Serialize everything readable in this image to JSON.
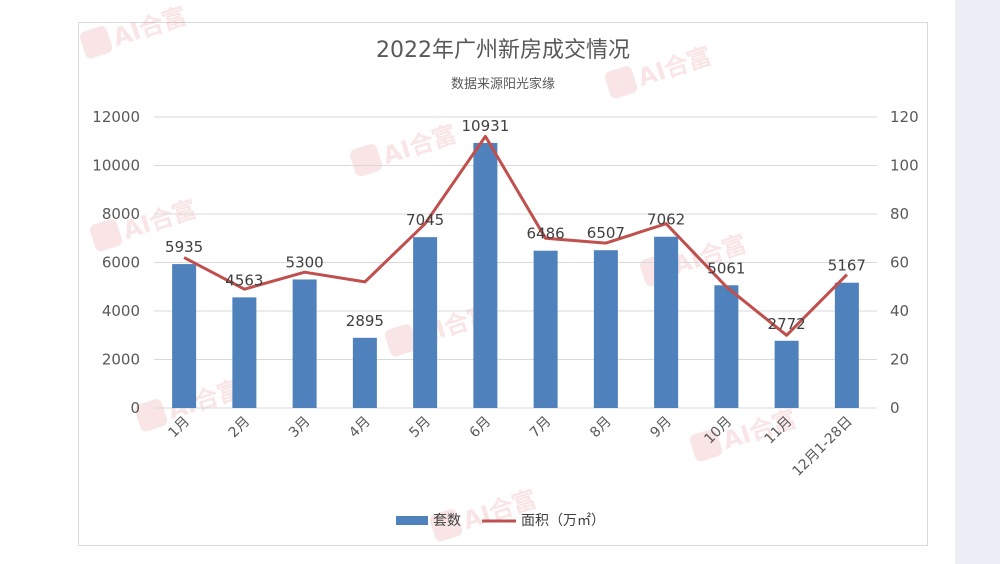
{
  "chart_data": {
    "type": "bar+line",
    "title": "2022年广州新房成交情况",
    "subtitle": "数据来源阳光家缘",
    "categories": [
      "1月",
      "2月",
      "3月",
      "4月",
      "5月",
      "6月",
      "7月",
      "8月",
      "9月",
      "10月",
      "11月",
      "12月1-28日"
    ],
    "series": [
      {
        "name": "套数",
        "type": "bar",
        "axis": "left",
        "color": "#4f81bd",
        "values": [
          5935,
          4563,
          5300,
          2895,
          7045,
          10931,
          6486,
          6507,
          7062,
          5061,
          2772,
          5167
        ],
        "labels": [
          "5935",
          "4563",
          "5300",
          "2895",
          "7045",
          "10931",
          "6486",
          "6507",
          "7062",
          "5061",
          "2772",
          "5167"
        ]
      },
      {
        "name": "面积（万㎡）",
        "type": "line",
        "axis": "right",
        "color": "#c0504d",
        "values": [
          62,
          49,
          56,
          52,
          76,
          112,
          70,
          68,
          76,
          50,
          30,
          55
        ]
      }
    ],
    "y_left": {
      "min": 0,
      "max": 12000,
      "ticks": [
        "0",
        "2000",
        "4000",
        "6000",
        "8000",
        "10000",
        "12000"
      ]
    },
    "y_right": {
      "min": 0,
      "max": 120,
      "ticks": [
        "0",
        "20",
        "40",
        "60",
        "80",
        "100",
        "120"
      ]
    },
    "grid": true,
    "legend_position": "bottom"
  },
  "watermark": {
    "text": "AI合富"
  }
}
